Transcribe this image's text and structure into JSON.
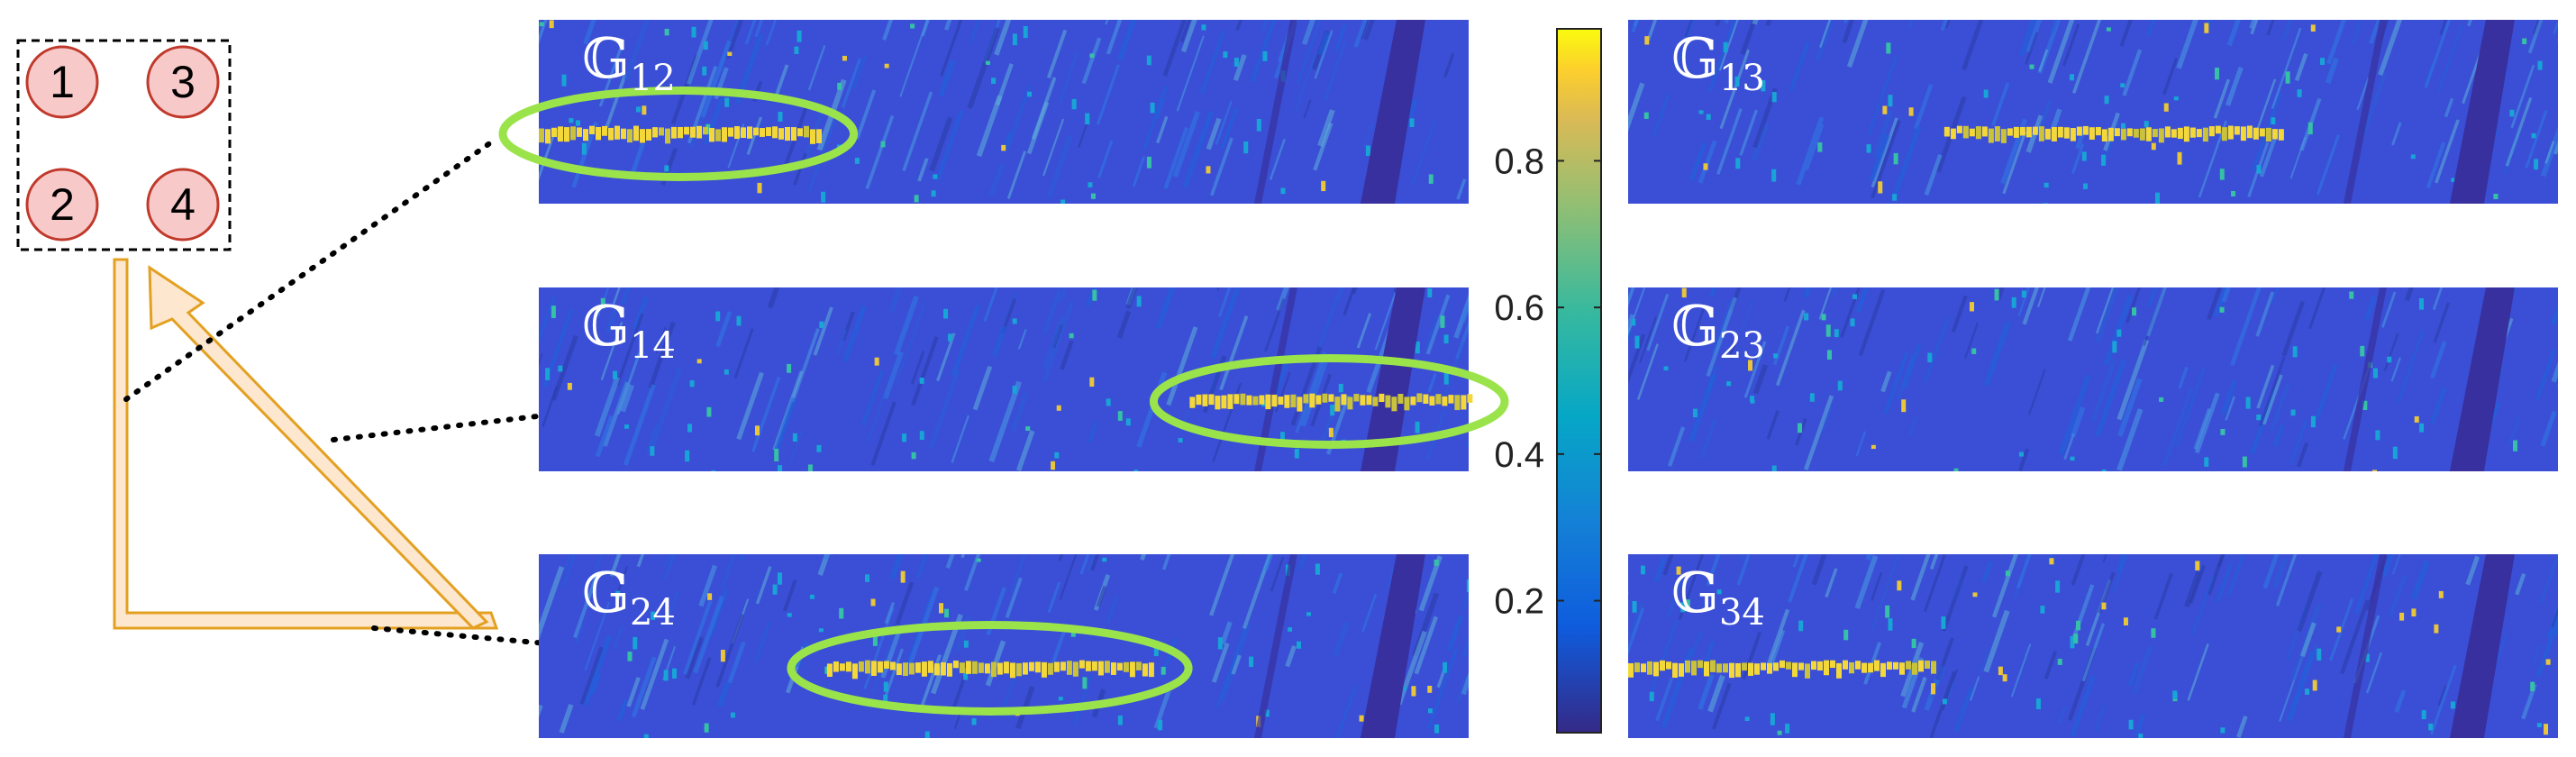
{
  "colors": {
    "node_fill": "#f8c9c9",
    "node_stroke": "#c0392b",
    "highlight": "#9be34a",
    "arrow_fill": "#fde7cf",
    "arrow_stroke": "#e3a021",
    "base": "#3a4fd6",
    "stripe": "#38309e"
  },
  "inset": {
    "nodes": [
      "1",
      "3",
      "2",
      "4"
    ]
  },
  "chart_data": {
    "type": "heatmap",
    "colormap": "parula",
    "colorbar": {
      "range": [
        0.02,
        0.98
      ],
      "ticks": [
        "0.2",
        "0.4",
        "0.6",
        "0.8"
      ],
      "tick_values": [
        0.2,
        0.4,
        0.6,
        0.8
      ]
    },
    "panels": [
      {
        "label": "𝔾",
        "sub": "12",
        "segment": [
          0.0,
          0.3
        ],
        "highlight": true
      },
      {
        "label": "𝔾",
        "sub": "13",
        "segment": [
          0.34,
          0.7
        ],
        "highlight": false
      },
      {
        "label": "𝔾",
        "sub": "14",
        "segment": [
          0.7,
          1.0
        ],
        "highlight": true
      },
      {
        "label": "𝔾",
        "sub": "23",
        "segment": null,
        "highlight": false
      },
      {
        "label": "𝔾",
        "sub": "24",
        "segment": [
          0.31,
          0.66
        ],
        "highlight": true
      },
      {
        "label": "𝔾",
        "sub": "34",
        "segment": [
          0.0,
          0.33
        ],
        "highlight": false
      }
    ]
  }
}
